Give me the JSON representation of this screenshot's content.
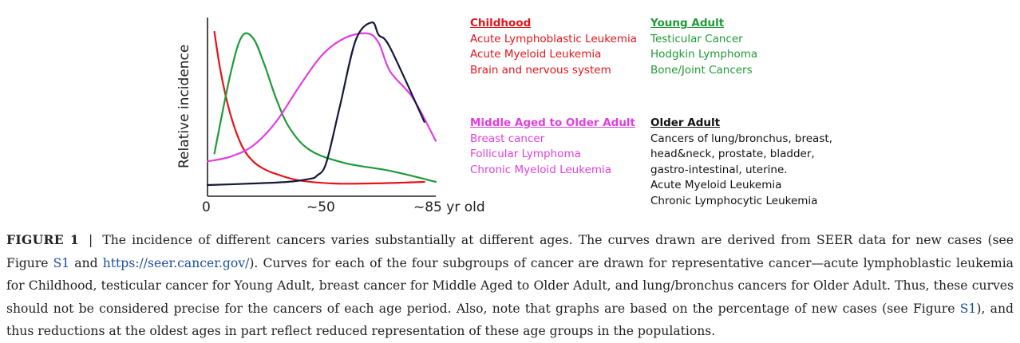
{
  "chart_data": {
    "type": "line",
    "ylabel": "Relative incidence",
    "x_ticks": [
      "0",
      "~50",
      "~85 yr old"
    ],
    "xlim": [
      0,
      100
    ],
    "ylim": [
      0,
      100
    ],
    "series": [
      {
        "name": "Childhood",
        "color": "#e4141a",
        "x": [
          3,
          6,
          10,
          15,
          20,
          25,
          30,
          40,
          55,
          70,
          85,
          95
        ],
        "y": [
          97,
          70,
          45,
          25,
          15,
          10,
          7,
          3,
          1,
          1,
          1.5,
          2
        ]
      },
      {
        "name": "Young Adult",
        "color": "#1f9a37",
        "x": [
          3,
          10,
          15,
          20,
          25,
          30,
          36,
          45,
          60,
          80,
          100
        ],
        "y": [
          20,
          70,
          94,
          93,
          76,
          55,
          36,
          22,
          14,
          9,
          2
        ]
      },
      {
        "name": "Middle Aged to Older Adult",
        "color": "#e040e0",
        "x": [
          0,
          10,
          20,
          30,
          40,
          50,
          60,
          70,
          75,
          80,
          90,
          100
        ],
        "y": [
          15,
          18,
          25,
          40,
          62,
          82,
          93,
          96,
          90,
          72,
          55,
          28
        ]
      },
      {
        "name": "Older Adult",
        "color": "#14183a",
        "x": [
          0,
          20,
          35,
          45,
          48,
          52,
          58,
          65,
          72,
          75,
          80,
          95
        ],
        "y": [
          0,
          1,
          2,
          4,
          6,
          14,
          50,
          92,
          103,
          95,
          87,
          40
        ]
      }
    ]
  },
  "groups": {
    "childhood": {
      "title": "Childhood",
      "items": [
        "Acute Lymphoblastic Leukemia",
        "Acute Myeloid Leukemia",
        "Brain and nervous system"
      ]
    },
    "young_adult": {
      "title": "Young Adult",
      "items": [
        "Testicular Cancer",
        "Hodgkin Lymphoma",
        "Bone/Joint Cancers"
      ]
    },
    "middle_aged": {
      "title": "Middle Aged to Older Adult",
      "items": [
        "Breast cancer",
        "Follicular Lymphoma",
        "Chronic Myeloid Leukemia"
      ]
    },
    "older_adult": {
      "title": "Older Adult",
      "items": [
        "Cancers of lung/bronchus, breast,",
        "head&neck, prostate, bladder,",
        "gastro-intestinal, uterine.",
        "Acute Myeloid Leukemia",
        "Chronic Lymphocytic Leukemia"
      ]
    }
  },
  "caption": {
    "label": "FIGURE 1",
    "separator": "|",
    "text_1": "The incidence of different cancers varies substantially at different ages. The curves drawn are derived from SEER data for new cases (see Figure ",
    "link_s1": "S1",
    "text_2": " and ",
    "link_seer": "https://seer.cancer.gov/",
    "text_3": "). Curves for each of the four subgroups of cancer are drawn for representative cancer—acute lymphoblastic leukemia for Childhood, testicular cancer for Young Adult, breast cancer for Middle Aged to Older Adult, and lung/bronchus cancers for Older Adult. Thus, these curves should not be considered precise for the cancers of each age period. Also, note that graphs are based on the percentage of new cases (see Figure ",
    "link_s1b": "S1",
    "text_4": "), and thus reductions at the oldest ages in part reflect reduced representation of these age groups in the populations."
  }
}
